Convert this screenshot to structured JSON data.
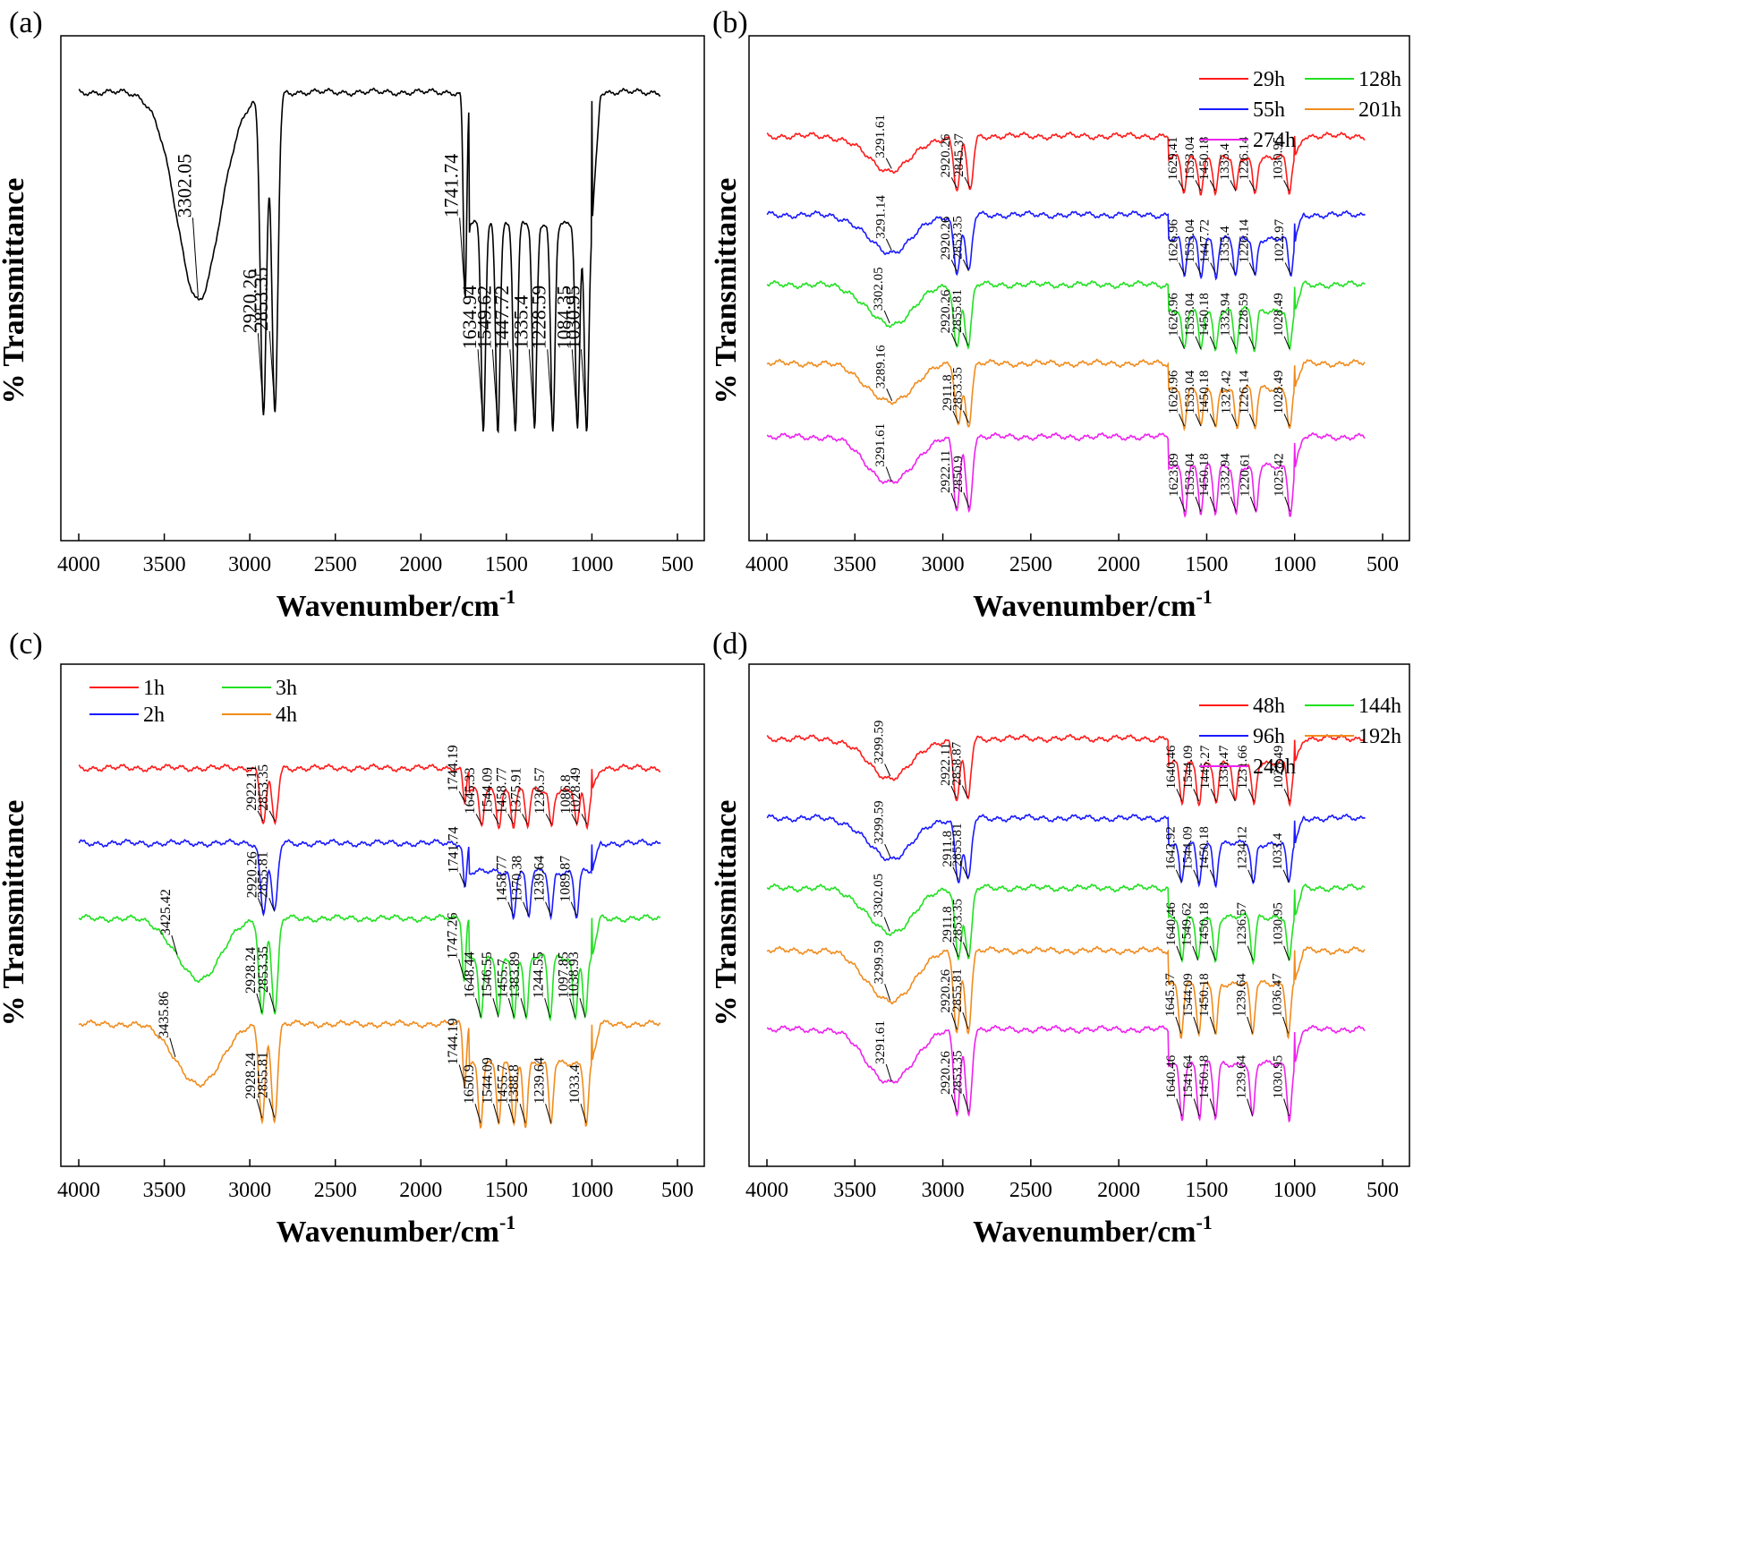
{
  "chart_data": [
    {
      "panel": "(a)",
      "type": "line",
      "xlabel_main": "Wavenumber/cm",
      "xlabel_sup": "-1",
      "ylabel": "% Transmittance",
      "xlim": [
        4000,
        500
      ],
      "xticks": [
        4000,
        3500,
        3000,
        2500,
        2000,
        1500,
        1000,
        500
      ],
      "series": [
        {
          "color": "#000000",
          "peaks": [
            {
              "label": "3302.05",
              "x": 3302.05
            },
            {
              "label": "2920.26",
              "x": 2920.26
            },
            {
              "label": "2853.35",
              "x": 2853.35
            },
            {
              "label": "1741.74",
              "x": 1741.74
            },
            {
              "label": "1634.94",
              "x": 1634.94
            },
            {
              "label": "1549.62",
              "x": 1549.62
            },
            {
              "label": "1447.72",
              "x": 1447.72
            },
            {
              "label": "1335.4",
              "x": 1335.4
            },
            {
              "label": "1228.59",
              "x": 1228.59
            },
            {
              "label": "1084.35",
              "x": 1084.35
            },
            {
              "label": "1030.95",
              "x": 1030.95
            }
          ]
        }
      ]
    },
    {
      "panel": "(b)",
      "type": "line",
      "xlabel_main": "Wavenumber/cm",
      "xlabel_sup": "-1",
      "ylabel": "% Transmittance",
      "xlim": [
        4000,
        500
      ],
      "xticks": [
        4000,
        3500,
        3000,
        2500,
        2000,
        1500,
        1000,
        500
      ],
      "legend": [
        [
          "29h",
          "128h"
        ],
        [
          "55h",
          "201h"
        ],
        [
          "274h"
        ]
      ],
      "series": [
        {
          "name": "29h",
          "color": "#ff1a1a",
          "peaks": [
            {
              "label": "3291.61",
              "x": 3291.61
            },
            {
              "label": "2920.26",
              "x": 2920.26
            },
            {
              "label": "2845.37",
              "x": 2845.37
            },
            {
              "label": "1629.41",
              "x": 1629.41
            },
            {
              "label": "1533.04",
              "x": 1533.04
            },
            {
              "label": "1450.18",
              "x": 1450.18
            },
            {
              "label": "1335.4",
              "x": 1335.4
            },
            {
              "label": "1226.14",
              "x": 1226.14
            },
            {
              "label": "1030.95",
              "x": 1030.95
            }
          ]
        },
        {
          "name": "55h",
          "color": "#1a1aff",
          "peaks": [
            {
              "label": "3291.14",
              "x": 3291.14
            },
            {
              "label": "2920.26",
              "x": 2920.26
            },
            {
              "label": "2853.35",
              "x": 2853.35
            },
            {
              "label": "1626.96",
              "x": 1626.96
            },
            {
              "label": "1533.04",
              "x": 1533.04
            },
            {
              "label": "1447.72",
              "x": 1447.72
            },
            {
              "label": "1335.4",
              "x": 1335.4
            },
            {
              "label": "1226.14",
              "x": 1226.14
            },
            {
              "label": "1022.97",
              "x": 1022.97
            }
          ]
        },
        {
          "name": "128h",
          "color": "#22e022",
          "peaks": [
            {
              "label": "3302.05",
              "x": 3302.05
            },
            {
              "label": "2920.26",
              "x": 2920.26
            },
            {
              "label": "2855.81",
              "x": 2855.81
            },
            {
              "label": "1626.96",
              "x": 1626.96
            },
            {
              "label": "1533.04",
              "x": 1533.04
            },
            {
              "label": "1450.18",
              "x": 1450.18
            },
            {
              "label": "1332.94",
              "x": 1332.94
            },
            {
              "label": "1228.59",
              "x": 1228.59
            },
            {
              "label": "1028.49",
              "x": 1028.49
            }
          ]
        },
        {
          "name": "201h",
          "color": "#f08c1e",
          "peaks": [
            {
              "label": "3289.16",
              "x": 3289.16
            },
            {
              "label": "2911.8",
              "x": 2911.8
            },
            {
              "label": "2853.35",
              "x": 2853.35
            },
            {
              "label": "1626.96",
              "x": 1626.96
            },
            {
              "label": "1533.04",
              "x": 1533.04
            },
            {
              "label": "1450.18",
              "x": 1450.18
            },
            {
              "label": "1327.42",
              "x": 1327.42
            },
            {
              "label": "1226.14",
              "x": 1226.14
            },
            {
              "label": "1028.49",
              "x": 1028.49
            }
          ]
        },
        {
          "name": "274h",
          "color": "#ee22ee",
          "peaks": [
            {
              "label": "3291.61",
              "x": 3291.61
            },
            {
              "label": "2922.11",
              "x": 2922.11
            },
            {
              "label": "2850.9",
              "x": 2850.9
            },
            {
              "label": "1623.89",
              "x": 1623.89
            },
            {
              "label": "1533.04",
              "x": 1533.04
            },
            {
              "label": "1450.18",
              "x": 1450.18
            },
            {
              "label": "1332.94",
              "x": 1332.94
            },
            {
              "label": "1220.61",
              "x": 1220.61
            },
            {
              "label": "1025.42",
              "x": 1025.42
            }
          ]
        }
      ]
    },
    {
      "panel": "(c)",
      "type": "line",
      "xlabel_main": "Wavenumber/cm",
      "xlabel_sup": "-1",
      "ylabel": "% Transmittance",
      "xlim": [
        4000,
        500
      ],
      "xticks": [
        4000,
        3500,
        3000,
        2500,
        2000,
        1500,
        1000,
        500
      ],
      "legend": [
        [
          "1h",
          "3h"
        ],
        [
          "2h",
          "4h"
        ]
      ],
      "series": [
        {
          "name": "1h",
          "color": "#ff1a1a",
          "peaks": [
            {
              "label": "2922.11",
              "x": 2922.11
            },
            {
              "label": "2853.35",
              "x": 2853.35
            },
            {
              "label": "1744.19",
              "x": 1744.19
            },
            {
              "label": "1645.33",
              "x": 1645.33
            },
            {
              "label": "1544.09",
              "x": 1544.09
            },
            {
              "label": "1458.77",
              "x": 1458.77
            },
            {
              "label": "1375.91",
              "x": 1375.91
            },
            {
              "label": "1236.57",
              "x": 1236.57
            },
            {
              "label": "1086.8",
              "x": 1086.8
            },
            {
              "label": "1028.49",
              "x": 1028.49
            }
          ]
        },
        {
          "name": "2h",
          "color": "#1a1aff",
          "peaks": [
            {
              "label": "2920.26",
              "x": 2920.26
            },
            {
              "label": "2855.81",
              "x": 2855.81
            },
            {
              "label": "1741.74",
              "x": 1741.74
            },
            {
              "label": "1458.77",
              "x": 1458.77
            },
            {
              "label": "1370.38",
              "x": 1370.38
            },
            {
              "label": "1239.64",
              "x": 1239.64
            },
            {
              "label": "1089.87",
              "x": 1089.87
            }
          ]
        },
        {
          "name": "3h",
          "color": "#22e022",
          "peaks": [
            {
              "label": "3425.42",
              "x": 3425.42
            },
            {
              "label": "2928.24",
              "x": 2928.24
            },
            {
              "label": "2853.35",
              "x": 2853.35
            },
            {
              "label": "1747.26",
              "x": 1747.26
            },
            {
              "label": "1648.44",
              "x": 1648.44
            },
            {
              "label": "1546.55",
              "x": 1546.55
            },
            {
              "label": "1455.7",
              "x": 1455.7
            },
            {
              "label": "1383.89",
              "x": 1383.89
            },
            {
              "label": "1244.55",
              "x": 1244.55
            },
            {
              "label": "1097.85",
              "x": 1097.85
            },
            {
              "label": "1038.93",
              "x": 1038.93
            }
          ]
        },
        {
          "name": "4h",
          "color": "#f08c1e",
          "peaks": [
            {
              "label": "3435.86",
              "x": 3435.86
            },
            {
              "label": "2928.24",
              "x": 2928.24
            },
            {
              "label": "2855.81",
              "x": 2855.81
            },
            {
              "label": "1744.19",
              "x": 1744.19
            },
            {
              "label": "1650.9",
              "x": 1650.9
            },
            {
              "label": "1544.09",
              "x": 1544.09
            },
            {
              "label": "1455.7",
              "x": 1455.7
            },
            {
              "label": "1388.8",
              "x": 1388.8
            },
            {
              "label": "1239.64",
              "x": 1239.64
            },
            {
              "label": "1033.4",
              "x": 1033.4
            }
          ]
        }
      ]
    },
    {
      "panel": "(d)",
      "type": "line",
      "xlabel_main": "Wavenumber/cm",
      "xlabel_sup": "-1",
      "ylabel": "% Transmittance",
      "xlim": [
        4000,
        500
      ],
      "xticks": [
        4000,
        3500,
        3000,
        2500,
        2000,
        1500,
        1000,
        500
      ],
      "legend": [
        [
          "48h",
          "144h"
        ],
        [
          "96h",
          "192h"
        ],
        [
          "240h"
        ]
      ],
      "series": [
        {
          "name": "48h",
          "color": "#ff1a1a",
          "peaks": [
            {
              "label": "3299.59",
              "x": 3299.59
            },
            {
              "label": "2922.11",
              "x": 2922.11
            },
            {
              "label": "2858.87",
              "x": 2858.87
            },
            {
              "label": "1640.46",
              "x": 1640.46
            },
            {
              "label": "1544.09",
              "x": 1544.09
            },
            {
              "label": "1445.27",
              "x": 1445.27
            },
            {
              "label": "1338.47",
              "x": 1338.47
            },
            {
              "label": "1231.66",
              "x": 1231.66
            },
            {
              "label": "1028.49",
              "x": 1028.49
            }
          ]
        },
        {
          "name": "96h",
          "color": "#1a1aff",
          "peaks": [
            {
              "label": "3299.59",
              "x": 3299.59
            },
            {
              "label": "2911.8",
              "x": 2911.8
            },
            {
              "label": "2855.81",
              "x": 2855.81
            },
            {
              "label": "1642.92",
              "x": 1642.92
            },
            {
              "label": "1544.09",
              "x": 1544.09
            },
            {
              "label": "1450.18",
              "x": 1450.18
            },
            {
              "label": "1234.12",
              "x": 1234.12
            },
            {
              "label": "1033.4",
              "x": 1033.4
            }
          ]
        },
        {
          "name": "144h",
          "color": "#22e022",
          "peaks": [
            {
              "label": "3302.05",
              "x": 3302.05
            },
            {
              "label": "2911.8",
              "x": 2911.8
            },
            {
              "label": "2853.35",
              "x": 2853.35
            },
            {
              "label": "1640.46",
              "x": 1640.46
            },
            {
              "label": "1549.62",
              "x": 1549.62
            },
            {
              "label": "1450.18",
              "x": 1450.18
            },
            {
              "label": "1236.57",
              "x": 1236.57
            },
            {
              "label": "1030.95",
              "x": 1030.95
            }
          ]
        },
        {
          "name": "192h",
          "color": "#f08c1e",
          "peaks": [
            {
              "label": "3299.59",
              "x": 3299.59
            },
            {
              "label": "2920.26",
              "x": 2920.26
            },
            {
              "label": "2855.81",
              "x": 2855.81
            },
            {
              "label": "1645.37",
              "x": 1645.37
            },
            {
              "label": "1544.09",
              "x": 1544.09
            },
            {
              "label": "1450.18",
              "x": 1450.18
            },
            {
              "label": "1239.64",
              "x": 1239.64
            },
            {
              "label": "1036.47",
              "x": 1036.47
            }
          ]
        },
        {
          "name": "240h",
          "color": "#ee22ee",
          "peaks": [
            {
              "label": "3291.61",
              "x": 3291.61
            },
            {
              "label": "2920.26",
              "x": 2920.26
            },
            {
              "label": "2853.35",
              "x": 2853.35
            },
            {
              "label": "1640.46",
              "x": 1640.46
            },
            {
              "label": "1541.64",
              "x": 1541.64
            },
            {
              "label": "1450.18",
              "x": 1450.18
            },
            {
              "label": "1239.64",
              "x": 1239.64
            },
            {
              "label": "1030.95",
              "x": 1030.95
            }
          ]
        }
      ]
    }
  ]
}
